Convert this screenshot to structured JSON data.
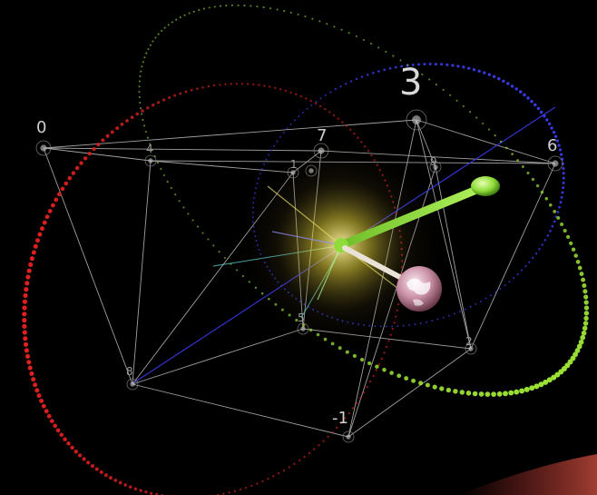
{
  "scene": {
    "labels": {
      "big": "3",
      "n0": "0",
      "n1": "1",
      "n4": "4",
      "n5": "5",
      "n6": "6",
      "n7": "7",
      "n8": "8",
      "n9": "9",
      "neg1": "-1",
      "n2": "2"
    },
    "colors": {
      "background": "#000000",
      "red_orbit": "#e02020",
      "green_orbit": "#9be035",
      "blue_orbit": "#3a3ae8",
      "cyan_lines": "#5fd0d0",
      "edges": "#bfbfbf",
      "green_arm": "#8fdc3a",
      "sphere": "#d8b0c0"
    }
  }
}
